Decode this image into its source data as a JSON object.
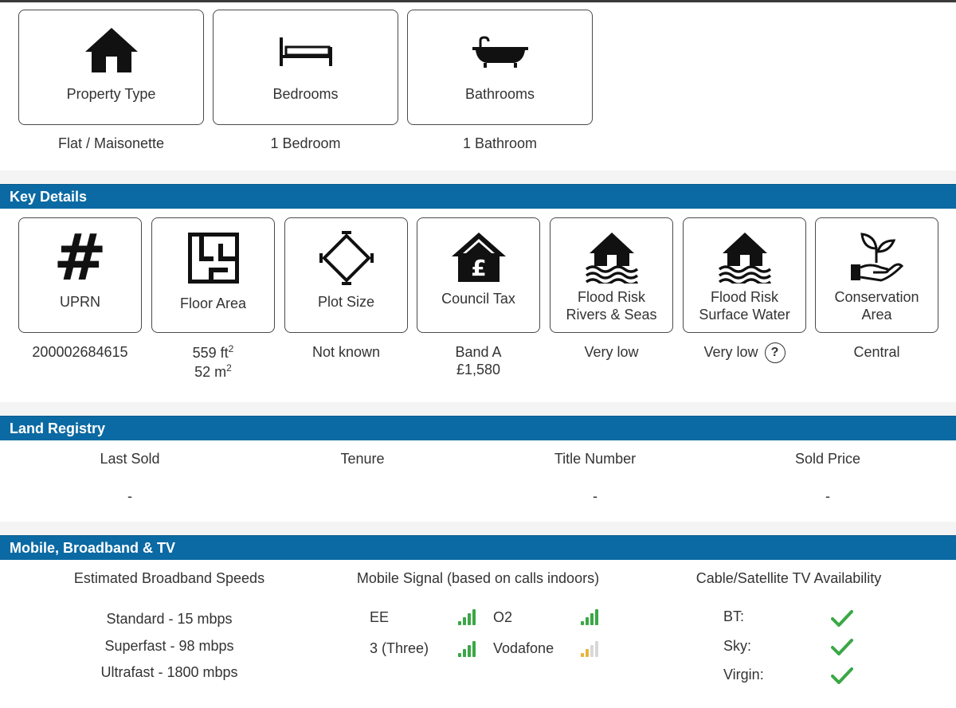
{
  "summary": {
    "cards": [
      {
        "label": "Property Type",
        "value": "Flat / Maisonette",
        "icon": "house-icon"
      },
      {
        "label": "Bedrooms",
        "value": "1 Bedroom",
        "icon": "bed-icon"
      },
      {
        "label": "Bathrooms",
        "value": "1 Bathroom",
        "icon": "bathtub-icon"
      }
    ]
  },
  "key_details": {
    "title": "Key Details",
    "uprn": {
      "label": "UPRN",
      "value": "200002684615"
    },
    "floor_area": {
      "label": "Floor Area",
      "ft_value": "559 ft",
      "ft_exp": "2",
      "m_value": "52 m",
      "m_exp": "2"
    },
    "plot_size": {
      "label": "Plot Size",
      "value": "Not known"
    },
    "council_tax": {
      "label": "Council Tax",
      "band": "Band A",
      "amount": "£1,580"
    },
    "flood_rivers": {
      "label_line1": "Flood Risk",
      "label_line2": "Rivers & Seas",
      "value": "Very low"
    },
    "flood_surface": {
      "label_line1": "Flood Risk",
      "label_line2": "Surface Water",
      "value": "Very low",
      "help": "?"
    },
    "conservation": {
      "label_line1": "Conservation",
      "label_line2": "Area",
      "value": "Central"
    }
  },
  "land_registry": {
    "title": "Land Registry",
    "columns": [
      {
        "header": "Last Sold",
        "value": "-"
      },
      {
        "header": "Tenure",
        "value": ""
      },
      {
        "header": "Title Number",
        "value": "-"
      },
      {
        "header": "Sold Price",
        "value": "-"
      }
    ]
  },
  "mobile": {
    "title": "Mobile, Broadband & TV",
    "broadband": {
      "heading": "Estimated Broadband Speeds",
      "speeds": [
        "Standard - 15 mbps",
        "Superfast - 98 mbps",
        "Ultrafast - 1800 mbps"
      ]
    },
    "signal": {
      "heading": "Mobile Signal (based on calls indoors)",
      "operators": [
        {
          "name": "EE",
          "bars": 4,
          "color": "#3aa845"
        },
        {
          "name": "O2",
          "bars": 4,
          "color": "#3aa845"
        },
        {
          "name": "3 (Three)",
          "bars": 4,
          "color": "#3aa845"
        },
        {
          "name": "Vodafone",
          "bars": 2,
          "color": "#e8b43a"
        }
      ]
    },
    "tv": {
      "heading": "Cable/Satellite TV Availability",
      "providers": [
        {
          "name": "BT:",
          "available": true
        },
        {
          "name": "Sky:",
          "available": true
        },
        {
          "name": "Virgin:",
          "available": true
        }
      ]
    }
  },
  "colors": {
    "section_bar": "#0b6aa3",
    "signal_good": "#3aa845",
    "signal_weak": "#e8b43a",
    "check": "#3aa845"
  }
}
